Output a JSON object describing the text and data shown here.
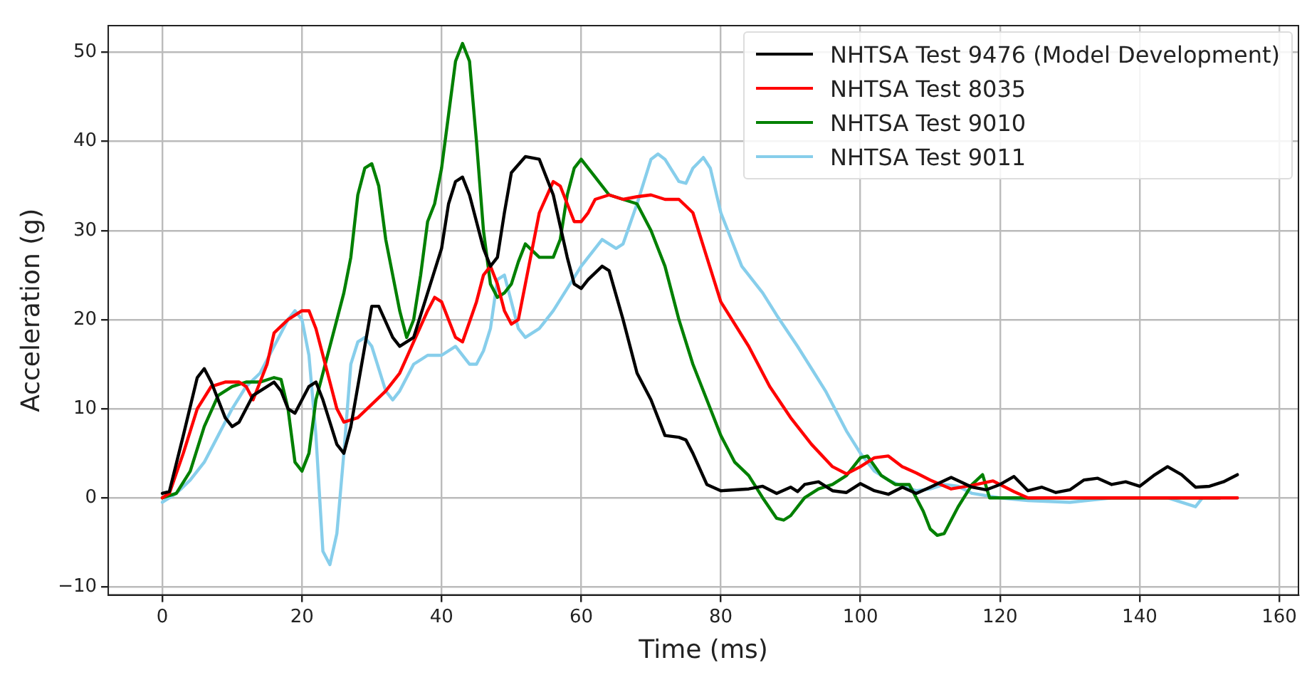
{
  "chart_data": {
    "type": "line",
    "xlabel": "Time (ms)",
    "ylabel": "Acceleration (g)",
    "xlim": [
      -7.75,
      162.75
    ],
    "ylim": [
      -10.9,
      53
    ],
    "xticks": [
      0,
      20,
      40,
      60,
      80,
      100,
      120,
      140,
      160
    ],
    "yticks": [
      -10,
      0,
      10,
      20,
      30,
      40,
      50
    ],
    "grid": true,
    "legend": "top right",
    "marker": "none",
    "line_style": "solid",
    "series": [
      {
        "name": "NHTSA Test 9476 (Model Development)",
        "color": "#000000",
        "x": [
          0,
          1,
          3,
          5,
          6,
          7,
          9,
          10,
          11,
          13,
          15,
          16,
          17,
          18,
          19,
          20,
          21,
          22,
          23,
          25,
          26,
          27,
          29,
          30,
          31,
          33,
          34,
          36,
          38,
          40,
          41,
          42,
          43,
          44,
          46,
          47,
          48,
          49,
          50,
          52,
          54,
          56,
          58,
          59,
          60,
          61,
          63,
          64,
          66,
          68,
          70,
          72,
          74,
          75,
          76,
          78,
          80,
          84,
          86,
          88,
          90,
          91,
          92,
          94,
          96,
          98,
          100,
          102,
          104,
          106,
          108,
          110,
          113,
          116,
          118,
          120,
          122,
          124,
          126,
          128,
          130,
          132,
          134,
          136,
          138,
          140,
          142,
          144,
          146,
          148,
          150,
          152,
          154
        ],
        "values": [
          0.5,
          0.7,
          7,
          13.5,
          14.5,
          13,
          9,
          8,
          8.5,
          11.5,
          12.5,
          13,
          12,
          10,
          9.5,
          11,
          12.5,
          13,
          11,
          6,
          5,
          8,
          17,
          21.5,
          21.5,
          18,
          17,
          18,
          23,
          28,
          33,
          35.5,
          36,
          34,
          28,
          26,
          27,
          32,
          36.5,
          38.3,
          38,
          34,
          27,
          24,
          23.5,
          24.5,
          26,
          25.5,
          20,
          14,
          11,
          7,
          6.8,
          6.5,
          5,
          1.5,
          0.8,
          1,
          1.3,
          0.5,
          1.2,
          0.7,
          1.5,
          1.8,
          0.8,
          0.6,
          1.6,
          0.8,
          0.4,
          1.2,
          0.5,
          1.2,
          2.3,
          1.2,
          0.9,
          1.5,
          2.4,
          0.8,
          1.2,
          0.6,
          0.9,
          2,
          2.2,
          1.5,
          1.8,
          1.3,
          2.5,
          3.5,
          2.6,
          1.2,
          1.3,
          1.8,
          2.6
        ]
      },
      {
        "name": "NHTSA Test 8035",
        "color": "#ff0000",
        "x": [
          0,
          1,
          3,
          5,
          7,
          9,
          11,
          12,
          13,
          15,
          16,
          18,
          20,
          21,
          22,
          24,
          25,
          26,
          28,
          30,
          32,
          34,
          36,
          38,
          39,
          40,
          41,
          42,
          43,
          45,
          46,
          47,
          48,
          49,
          50,
          51,
          52,
          54,
          56,
          57,
          58,
          59,
          60,
          61,
          62,
          64,
          66,
          68,
          70,
          72,
          74,
          76,
          78,
          80,
          84,
          87,
          90,
          93,
          96,
          98,
          100,
          102,
          104,
          106,
          108,
          110,
          113,
          116,
          119,
          122,
          124,
          130,
          140,
          150,
          154
        ],
        "values": [
          0,
          0.5,
          5,
          10,
          12.5,
          13,
          13,
          12.5,
          11,
          15,
          18.5,
          20,
          21,
          21,
          19,
          13,
          10,
          8.5,
          9,
          10.5,
          12,
          14,
          17.5,
          21,
          22.5,
          22,
          20,
          18,
          17.5,
          22,
          25,
          26,
          24,
          21,
          19.5,
          20,
          24,
          32,
          35.5,
          35,
          33,
          31,
          31,
          32,
          33.5,
          34,
          33.5,
          33.8,
          34,
          33.5,
          33.5,
          32,
          27,
          22,
          17,
          12.5,
          9,
          6,
          3.5,
          2.7,
          3.5,
          4.5,
          4.7,
          3.5,
          2.8,
          2,
          1,
          1.4,
          1.9,
          0.7,
          0,
          0,
          0,
          0,
          0
        ]
      },
      {
        "name": "NHTSA Test 9010",
        "color": "#008000",
        "x": [
          0,
          2,
          4,
          6,
          8,
          10,
          12,
          14,
          16,
          17,
          18,
          19,
          20,
          21,
          22,
          24,
          26,
          27,
          28,
          29,
          30,
          31,
          32,
          34,
          35,
          36,
          37,
          38,
          39,
          40,
          41,
          42,
          43,
          44,
          45,
          46,
          47,
          48,
          49,
          50,
          51,
          52,
          54,
          56,
          57,
          58,
          59,
          60,
          62,
          64,
          66,
          68,
          70,
          72,
          74,
          76,
          78,
          80,
          82,
          84,
          86,
          88,
          89,
          90,
          92,
          94,
          96,
          98,
          100,
          101,
          103,
          105,
          107,
          109,
          110,
          111,
          112,
          114,
          116,
          117.5,
          118.5,
          130,
          140,
          151.5
        ],
        "values": [
          0,
          0.5,
          3,
          8,
          11.5,
          12.5,
          13,
          13,
          13.5,
          13.3,
          10,
          4,
          3,
          5,
          11,
          17,
          23,
          27,
          34,
          37,
          37.5,
          35,
          29,
          21,
          18,
          20,
          25,
          31,
          33,
          37,
          43,
          49,
          51,
          49,
          40,
          30,
          24,
          22.5,
          23,
          24,
          26.5,
          28.5,
          27,
          27,
          29,
          34,
          37,
          38,
          36,
          34,
          33.5,
          33,
          30,
          26,
          20,
          15,
          11,
          7,
          4,
          2.5,
          0,
          -2.3,
          -2.5,
          -2,
          0,
          1,
          1.5,
          2.5,
          4.5,
          4.7,
          2.5,
          1.5,
          1.5,
          -1.5,
          -3.5,
          -4.2,
          -4,
          -1,
          1.5,
          2.6,
          0,
          0,
          0,
          0
        ]
      },
      {
        "name": "NHTSA Test 9011",
        "color": "#87ceeb",
        "x": [
          0,
          2,
          4,
          6,
          8,
          10,
          12,
          14,
          16,
          18,
          19,
          20,
          21,
          22,
          23,
          24,
          25,
          26,
          27,
          28,
          29,
          30,
          31,
          32,
          33,
          34,
          36,
          38,
          40,
          42,
          44,
          45,
          46,
          47,
          48,
          49,
          50,
          51,
          52,
          54,
          56,
          58,
          60,
          62,
          63,
          65,
          66,
          68,
          70,
          71,
          72,
          74,
          75,
          76,
          77.5,
          78.5,
          80,
          83,
          86,
          88,
          91,
          93,
          95,
          98,
          100,
          102,
          104,
          106,
          108,
          110,
          112,
          114,
          116,
          120,
          124,
          130,
          136,
          140,
          144,
          146,
          148,
          149,
          154
        ],
        "values": [
          -0.5,
          0.5,
          2,
          4,
          7,
          10,
          12.5,
          14,
          17,
          20,
          21,
          20,
          16,
          7,
          -6,
          -7.5,
          -4,
          5,
          15,
          17.5,
          18,
          17,
          14.5,
          12,
          11,
          12,
          15,
          16,
          16,
          17,
          15,
          15,
          16.5,
          19,
          24.5,
          25,
          22,
          19,
          18,
          19,
          21,
          23.5,
          26,
          28,
          29,
          28,
          28.5,
          33,
          38,
          38.6,
          38,
          35.5,
          35.3,
          37,
          38.2,
          37,
          32,
          26,
          23,
          20.5,
          17,
          14.5,
          12,
          7.5,
          5,
          3,
          2,
          1.3,
          0.8,
          1,
          1.5,
          1.3,
          0.5,
          0,
          -0.3,
          -0.5,
          0,
          0,
          0,
          -0.5,
          -1,
          0,
          0
        ]
      }
    ]
  }
}
